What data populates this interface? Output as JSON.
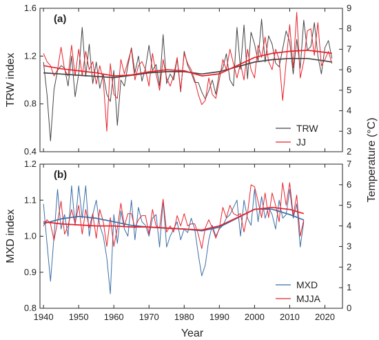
{
  "xlabel": "Year",
  "right_axis_label": "Temperature (°C)",
  "colors": {
    "trw": "#444444",
    "mxd": "#3a6ea5",
    "temp": "#e8202a",
    "axis": "#222222"
  },
  "chart_data": [
    {
      "type": "line",
      "panel_label": "(a)",
      "ylabel": "TRW index",
      "ylabel_right": "Temperature (°C)",
      "xlim": [
        1939,
        2025
      ],
      "ylim": [
        0.4,
        1.6
      ],
      "ylim_right": [
        2,
        9
      ],
      "x_ticks": [
        1940,
        1950,
        1960,
        1970,
        1980,
        1990,
        2000,
        2010,
        2020
      ],
      "y_ticks": [
        0.4,
        0.8,
        1.2,
        1.6
      ],
      "y_ticks_right": [
        2,
        3,
        4,
        5,
        6,
        7,
        8,
        9
      ],
      "legend_position": "lower-right",
      "series": [
        {
          "name": "TRW",
          "axis": "left",
          "role": "raw",
          "legend": true,
          "x": [
            1940,
            1941,
            1942,
            1943,
            1944,
            1945,
            1946,
            1947,
            1948,
            1949,
            1950,
            1951,
            1952,
            1953,
            1954,
            1955,
            1956,
            1957,
            1958,
            1959,
            1960,
            1961,
            1962,
            1963,
            1964,
            1965,
            1966,
            1967,
            1968,
            1969,
            1970,
            1971,
            1972,
            1973,
            1974,
            1975,
            1976,
            1977,
            1978,
            1979,
            1980,
            1981,
            1982,
            1983,
            1984,
            1985,
            1986,
            1987,
            1988,
            1989,
            1990,
            1991,
            1992,
            1993,
            1994,
            1995,
            1996,
            1997,
            1998,
            1999,
            2000,
            2001,
            2002,
            2003,
            2004,
            2005,
            2006,
            2007,
            2008,
            2009,
            2010,
            2011,
            2012,
            2013,
            2014,
            2015,
            2016,
            2017,
            2018,
            2019,
            2020,
            2021,
            2022
          ],
          "values": [
            1.15,
            0.88,
            0.49,
            0.92,
            1.08,
            1.12,
            1.1,
            0.95,
            1.2,
            0.86,
            1.05,
            1.44,
            1.03,
            1.3,
            0.97,
            1.15,
            0.93,
            1.05,
            0.88,
            0.82,
            1.08,
            0.62,
            1.0,
            0.95,
            1.12,
            1.27,
            1.06,
            1.2,
            0.99,
            1.1,
            1.29,
            1.08,
            1.13,
            0.95,
            1.38,
            0.97,
            1.05,
            1.0,
            1.18,
            0.9,
            1.24,
            1.12,
            1.06,
            0.98,
            0.98,
            0.9,
            0.84,
            0.91,
            1.0,
            0.88,
            1.06,
            1.1,
            1.22,
            1.0,
            0.95,
            1.44,
            1.09,
            1.46,
            1.01,
            1.4,
            1.3,
            1.16,
            1.51,
            1.15,
            1.37,
            1.3,
            1.14,
            1.11,
            1.26,
            1.41,
            1.32,
            1.05,
            1.34,
            1.1,
            1.5,
            1.25,
            1.28,
            1.48,
            1.2,
            1.05,
            1.27,
            1.33,
            1.18
          ]
        },
        {
          "name": "JJ",
          "axis": "right",
          "role": "raw",
          "legend": true,
          "x": [
            1940,
            1941,
            1942,
            1943,
            1944,
            1945,
            1946,
            1947,
            1948,
            1949,
            1950,
            1951,
            1952,
            1953,
            1954,
            1955,
            1956,
            1957,
            1958,
            1959,
            1960,
            1961,
            1962,
            1963,
            1964,
            1965,
            1966,
            1967,
            1968,
            1969,
            1970,
            1971,
            1972,
            1973,
            1974,
            1975,
            1976,
            1977,
            1978,
            1979,
            1980,
            1981,
            1982,
            1983,
            1984,
            1985,
            1986,
            1987,
            1988,
            1989,
            1990,
            1991,
            1992,
            1993,
            1994,
            1995,
            1996,
            1997,
            1998,
            1999,
            2000,
            2001,
            2002,
            2003,
            2004,
            2005,
            2006,
            2007,
            2008,
            2009,
            2010,
            2011,
            2012,
            2013,
            2014,
            2015,
            2016,
            2017,
            2018,
            2019,
            2020,
            2021,
            2022
          ],
          "values": [
            6.8,
            6.4,
            6.2,
            5.7,
            6.0,
            7.1,
            6.0,
            5.7,
            7.2,
            5.7,
            7.0,
            5.7,
            6.9,
            6.0,
            6.4,
            5.3,
            6.2,
            5.5,
            3.0,
            6.3,
            4.8,
            4.6,
            6.5,
            5.8,
            6.4,
            7.0,
            5.5,
            6.2,
            6.4,
            6.0,
            5.2,
            6.8,
            5.8,
            5.0,
            6.5,
            5.6,
            5.2,
            5.7,
            6.6,
            5.0,
            6.8,
            6.3,
            6.0,
            5.5,
            4.8,
            4.3,
            4.5,
            5.6,
            4.8,
            4.6,
            5.5,
            6.5,
            6.0,
            7.0,
            6.3,
            5.6,
            6.3,
            5.5,
            7.0,
            6.0,
            5.6,
            7.2,
            6.6,
            7.6,
            6.4,
            6.0,
            7.0,
            6.5,
            4.5,
            6.4,
            8.2,
            6.1,
            8.8,
            5.6,
            6.4,
            7.9,
            8.0,
            6.7,
            8.3,
            6.2,
            6.5,
            6.9,
            6.3
          ]
        },
        {
          "name": "TRW",
          "axis": "left",
          "role": "smooth",
          "legend": false,
          "x": [
            1940,
            1945,
            1950,
            1955,
            1960,
            1965,
            1970,
            1975,
            1980,
            1985,
            1990,
            1995,
            2000,
            2005,
            2010,
            2015,
            2020,
            2022
          ],
          "values": [
            1.06,
            1.05,
            1.04,
            1.03,
            1.02,
            1.04,
            1.06,
            1.07,
            1.07,
            1.05,
            1.07,
            1.11,
            1.15,
            1.17,
            1.18,
            1.18,
            1.16,
            1.15
          ]
        },
        {
          "name": "JJ",
          "axis": "right",
          "role": "smooth",
          "legend": false,
          "x": [
            1940,
            1945,
            1950,
            1955,
            1960,
            1965,
            1970,
            1975,
            1980,
            1985,
            1990,
            1995,
            2000,
            2005,
            2010,
            2015,
            2020,
            2022
          ],
          "values": [
            6.2,
            6.05,
            5.95,
            5.85,
            5.7,
            5.75,
            5.9,
            6.0,
            5.95,
            5.7,
            5.8,
            6.2,
            6.6,
            6.8,
            6.9,
            6.95,
            6.85,
            6.8
          ]
        }
      ]
    },
    {
      "type": "line",
      "panel_label": "(b)",
      "ylabel": "MXD index",
      "ylabel_right": "",
      "xlim": [
        1939,
        2025
      ],
      "ylim": [
        0.8,
        1.2
      ],
      "ylim_right": [
        0,
        7
      ],
      "x_ticks": [
        1940,
        1950,
        1960,
        1970,
        1980,
        1990,
        2000,
        2010,
        2020
      ],
      "y_ticks": [
        0.8,
        0.9,
        1.0,
        1.1,
        1.2
      ],
      "y_ticks_right": [
        0,
        1,
        2,
        3,
        4,
        5,
        6,
        7
      ],
      "legend_position": "lower-right",
      "series": [
        {
          "name": "MXD",
          "axis": "left",
          "role": "raw",
          "legend": true,
          "x": [
            1940,
            1941,
            1942,
            1943,
            1944,
            1945,
            1946,
            1947,
            1948,
            1949,
            1950,
            1951,
            1952,
            1953,
            1954,
            1955,
            1956,
            1957,
            1958,
            1959,
            1960,
            1961,
            1962,
            1963,
            1964,
            1965,
            1966,
            1967,
            1968,
            1969,
            1970,
            1971,
            1972,
            1973,
            1974,
            1975,
            1976,
            1977,
            1978,
            1979,
            1980,
            1981,
            1982,
            1983,
            1984,
            1985,
            1986,
            1987,
            1988,
            1989,
            1990,
            1991,
            1992,
            1993,
            1994,
            1995,
            1996,
            1997,
            1998,
            1999,
            2000,
            2001,
            2002,
            2003,
            2004,
            2005,
            2006,
            2007,
            2008,
            2009,
            2010,
            2011,
            2012,
            2013,
            2014
          ],
          "values": [
            1.09,
            0.98,
            0.875,
            1.0,
            1.13,
            1.02,
            1.06,
            1.0,
            1.14,
            1.03,
            1.14,
            1.05,
            1.14,
            1.0,
            1.06,
            1.1,
            1.03,
            1.0,
            0.94,
            0.84,
            1.06,
            0.98,
            1.07,
            1.02,
            1.0,
            1.1,
            0.99,
            1.08,
            1.04,
            1.03,
            1.0,
            1.05,
            1.06,
            0.97,
            1.1,
            0.97,
            1.0,
            1.02,
            1.04,
            0.99,
            1.02,
            1.01,
            1.05,
            1.02,
            0.95,
            0.89,
            0.92,
            0.99,
            1.03,
            1.0,
            1.02,
            1.03,
            1.05,
            1.06,
            1.08,
            1.1,
            1.0,
            1.1,
            1.05,
            1.03,
            1.13,
            1.04,
            1.11,
            1.05,
            1.08,
            1.06,
            1.02,
            1.1,
            1.05,
            1.06,
            1.13,
            1.05,
            1.09,
            0.97,
            1.04
          ]
        },
        {
          "name": "MJJA",
          "axis": "right",
          "role": "raw",
          "legend": true,
          "x": [
            1940,
            1941,
            1942,
            1943,
            1944,
            1945,
            1946,
            1947,
            1948,
            1949,
            1950,
            1951,
            1952,
            1953,
            1954,
            1955,
            1956,
            1957,
            1958,
            1959,
            1960,
            1961,
            1962,
            1963,
            1964,
            1965,
            1966,
            1967,
            1968,
            1969,
            1970,
            1971,
            1972,
            1973,
            1974,
            1975,
            1976,
            1977,
            1978,
            1979,
            1980,
            1981,
            1982,
            1983,
            1984,
            1985,
            1986,
            1987,
            1988,
            1989,
            1990,
            1991,
            1992,
            1993,
            1994,
            1995,
            1996,
            1997,
            1998,
            1999,
            2000,
            2001,
            2002,
            2003,
            2004,
            2005,
            2006,
            2007,
            2008,
            2009,
            2010,
            2011,
            2012,
            2013,
            2014
          ],
          "values": [
            4.0,
            4.3,
            4.1,
            3.3,
            4.2,
            5.2,
            3.6,
            4.0,
            4.8,
            4.1,
            5.0,
            3.6,
            4.8,
            3.9,
            4.6,
            3.4,
            4.8,
            4.2,
            3.0,
            4.4,
            3.0,
            3.9,
            5.1,
            4.0,
            4.6,
            4.6,
            3.9,
            4.3,
            4.5,
            4.5,
            3.6,
            4.8,
            4.0,
            3.9,
            5.3,
            3.7,
            4.0,
            3.7,
            4.5,
            4.0,
            4.6,
            4.0,
            4.1,
            4.1,
            3.6,
            2.9,
            3.9,
            4.3,
            3.9,
            3.4,
            3.9,
            4.9,
            4.4,
            5.0,
            4.6,
            4.5,
            4.6,
            3.7,
            4.6,
            6.0,
            5.9,
            5.2,
            4.4,
            5.6,
            4.4,
            5.6,
            5.0,
            4.2,
            6.1,
            5.0,
            6.1,
            4.5,
            5.5,
            3.5,
            4.3
          ]
        },
        {
          "name": "MXD",
          "axis": "left",
          "role": "smooth",
          "legend": false,
          "x": [
            1940,
            1945,
            1950,
            1955,
            1960,
            1965,
            1970,
            1975,
            1980,
            1985,
            1990,
            1995,
            2000,
            2005,
            2010,
            2014
          ],
          "values": [
            1.035,
            1.048,
            1.055,
            1.05,
            1.04,
            1.03,
            1.025,
            1.022,
            1.02,
            1.015,
            1.025,
            1.05,
            1.075,
            1.075,
            1.06,
            1.045
          ]
        },
        {
          "name": "MJJA",
          "axis": "right",
          "role": "smooth",
          "legend": false,
          "x": [
            1940,
            1945,
            1950,
            1955,
            1960,
            1965,
            1970,
            1975,
            1980,
            1985,
            1990,
            1995,
            2000,
            2005,
            2010,
            2014
          ],
          "values": [
            4.2,
            4.1,
            4.05,
            4.0,
            4.0,
            3.95,
            3.95,
            3.9,
            3.85,
            3.8,
            4.0,
            4.4,
            4.8,
            4.9,
            4.8,
            4.6
          ]
        }
      ]
    }
  ]
}
